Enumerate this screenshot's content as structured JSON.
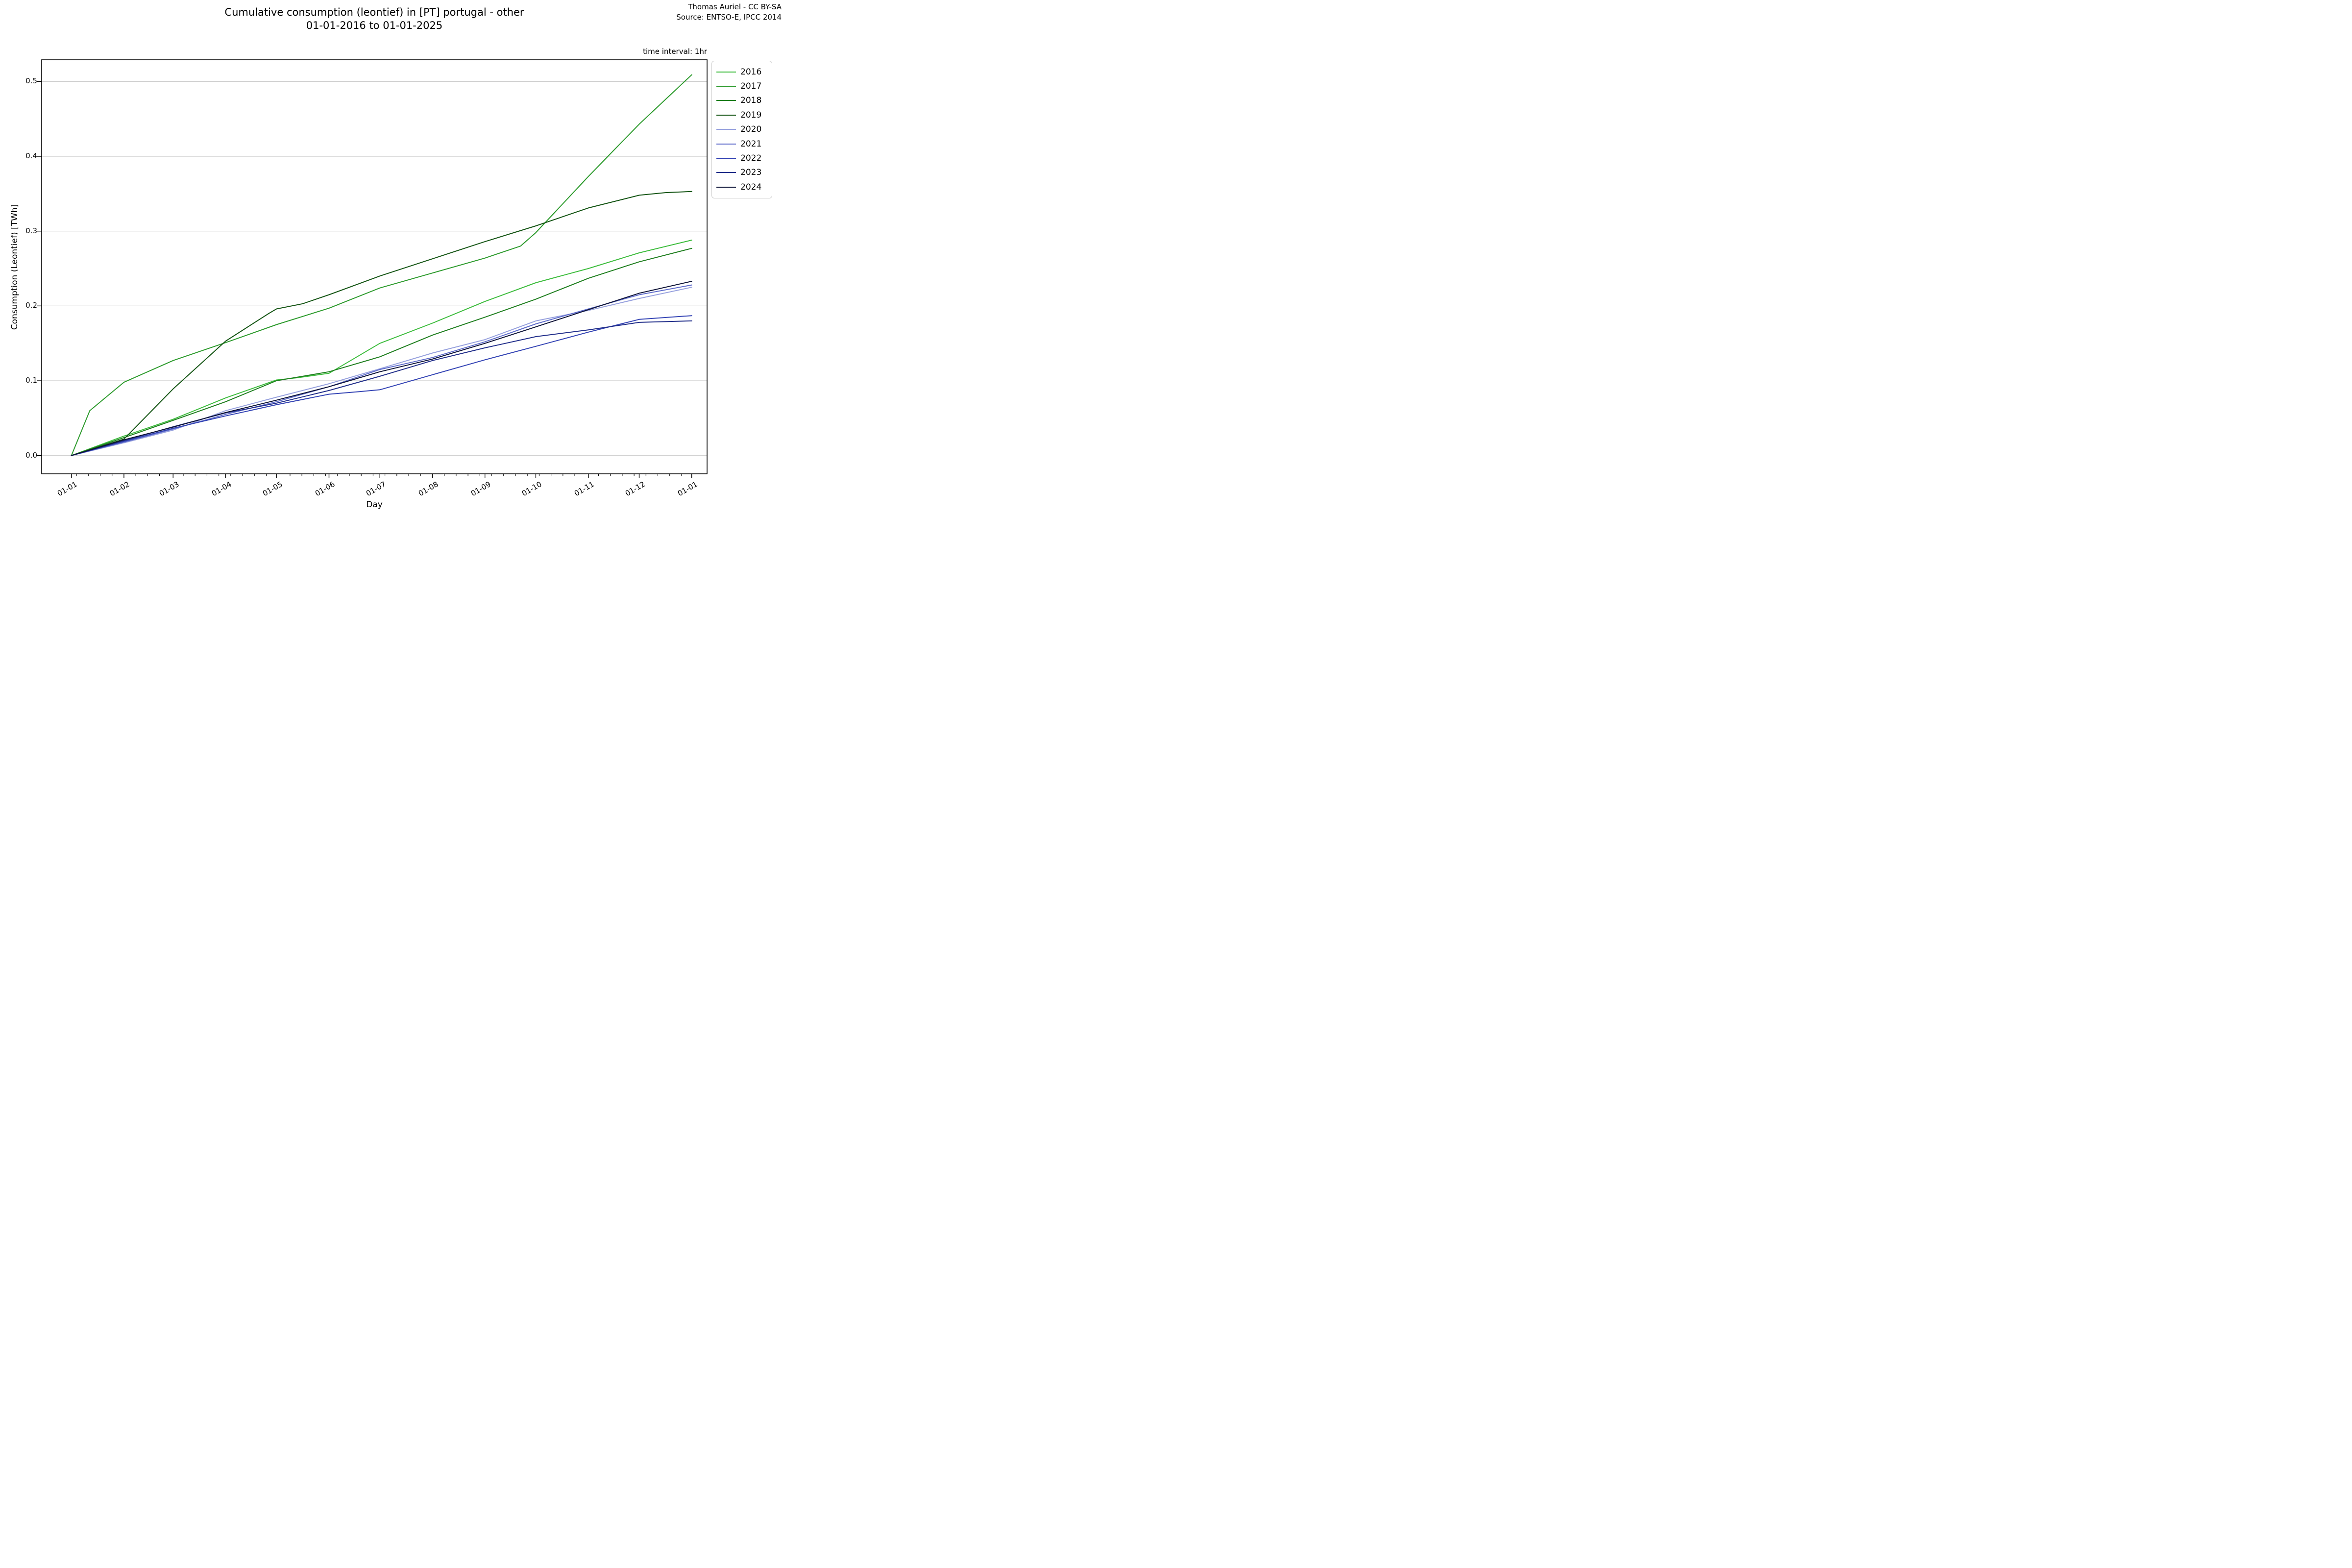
{
  "chart_data": {
    "type": "line",
    "title": "Cumulative consumption (leontief) in [PT] portugal - other",
    "subtitle": "01-01-2016 to 01-01-2025",
    "attribution": [
      "Thomas Auriel - CC BY-SA",
      "Source: ENTSO-E, IPCC 2014"
    ],
    "annotation_time_interval": "time interval: 1hr",
    "xlabel": "Day",
    "ylabel": "Consumption (Leontief) [TWh]",
    "x_tick_labels": [
      "01-01",
      "01-02",
      "01-03",
      "01-04",
      "01-05",
      "01-06",
      "01-07",
      "01-08",
      "01-09",
      "01-10",
      "01-11",
      "01-12",
      "01-01"
    ],
    "y_ticks": [
      0.0,
      0.1,
      0.2,
      0.3,
      0.4,
      0.5
    ],
    "ylim": [
      -0.024,
      0.529
    ],
    "grid": "horizontal gridlines at each 0.1, light gray",
    "legend_position": "outside upper right",
    "x_units": "months 0-12 of the year (hourly cumulative data, sampled monthly)",
    "series": [
      {
        "name": "2016",
        "color": "#3cbc3c",
        "x": [
          0,
          1,
          2,
          3,
          4,
          4.4,
          5,
          6,
          7,
          8,
          9,
          10,
          11,
          12
        ],
        "values": [
          0,
          0.026,
          0.0485,
          0.077,
          0.101,
          0.104,
          0.11,
          0.15,
          0.177,
          0.206,
          0.231,
          0.25,
          0.271,
          0.288
        ]
      },
      {
        "name": "2017",
        "color": "#2b9a2b",
        "x": [
          0,
          0.35,
          1,
          2,
          3,
          4,
          5,
          6,
          7,
          8,
          8.7,
          9,
          10,
          11,
          12
        ],
        "values": [
          0,
          0.06,
          0.098,
          0.127,
          0.151,
          0.175,
          0.197,
          0.224,
          0.244,
          0.264,
          0.28,
          0.298,
          0.373,
          0.443,
          0.509
        ]
      },
      {
        "name": "2018",
        "color": "#1e7e1e",
        "x": [
          0,
          1,
          2,
          3,
          4,
          5,
          6,
          7,
          8,
          9,
          10,
          11,
          12
        ],
        "values": [
          0,
          0.024,
          0.047,
          0.072,
          0.1,
          0.112,
          0.132,
          0.161,
          0.185,
          0.209,
          0.237,
          0.259,
          0.277
        ]
      },
      {
        "name": "2019",
        "color": "#135413",
        "x": [
          0,
          1,
          2,
          3,
          3.85,
          4,
          4.5,
          5,
          6,
          7,
          8,
          9,
          10,
          11,
          11.5,
          12
        ],
        "values": [
          0,
          0.022,
          0.089,
          0.153,
          0.19,
          0.196,
          0.203,
          0.215,
          0.24,
          0.263,
          0.286,
          0.307,
          0.331,
          0.348,
          0.3515,
          0.353
        ]
      },
      {
        "name": "2020",
        "color": "#97a1de",
        "x": [
          0,
          1,
          2,
          3,
          4,
          5,
          6,
          7,
          8,
          9,
          10,
          11,
          12
        ],
        "values": [
          0,
          0.017,
          0.034,
          0.06,
          0.078,
          0.096,
          0.116,
          0.137,
          0.155,
          0.18,
          0.194,
          0.21,
          0.225
        ]
      },
      {
        "name": "2021",
        "color": "#5f6ccb",
        "x": [
          0,
          1,
          2,
          3,
          4,
          5,
          6,
          7,
          8,
          9,
          10,
          11,
          12
        ],
        "values": [
          0,
          0.018,
          0.0355,
          0.055,
          0.072,
          0.092,
          0.115,
          0.131,
          0.152,
          0.176,
          0.196,
          0.215,
          0.228
        ]
      },
      {
        "name": "2022",
        "color": "#3343b4",
        "x": [
          0,
          1,
          2,
          3,
          4,
          5,
          5.6,
          6,
          7,
          8,
          9,
          10,
          11,
          12
        ],
        "values": [
          0,
          0.019,
          0.0365,
          0.053,
          0.068,
          0.082,
          0.0855,
          0.088,
          0.108,
          0.128,
          0.146,
          0.165,
          0.182,
          0.187
        ]
      },
      {
        "name": "2023",
        "color": "#212e8a",
        "x": [
          0,
          1,
          2,
          3,
          4,
          5,
          6,
          7,
          8,
          9,
          10,
          11,
          12
        ],
        "values": [
          0,
          0.02,
          0.0385,
          0.057,
          0.07,
          0.087,
          0.106,
          0.127,
          0.144,
          0.159,
          0.168,
          0.178,
          0.18
        ]
      },
      {
        "name": "2024",
        "color": "#0d1337",
        "x": [
          0,
          1,
          2,
          3,
          4,
          5,
          6,
          7,
          8,
          9,
          10,
          11,
          12
        ],
        "values": [
          0,
          0.021,
          0.038,
          0.0575,
          0.074,
          0.092,
          0.112,
          0.129,
          0.15,
          0.172,
          0.195,
          0.217,
          0.233
        ]
      }
    ],
    "colors": {
      "grid": "#cccccc",
      "axis": "#000000",
      "legend_border": "#cccccc",
      "background": "#ffffff"
    }
  }
}
